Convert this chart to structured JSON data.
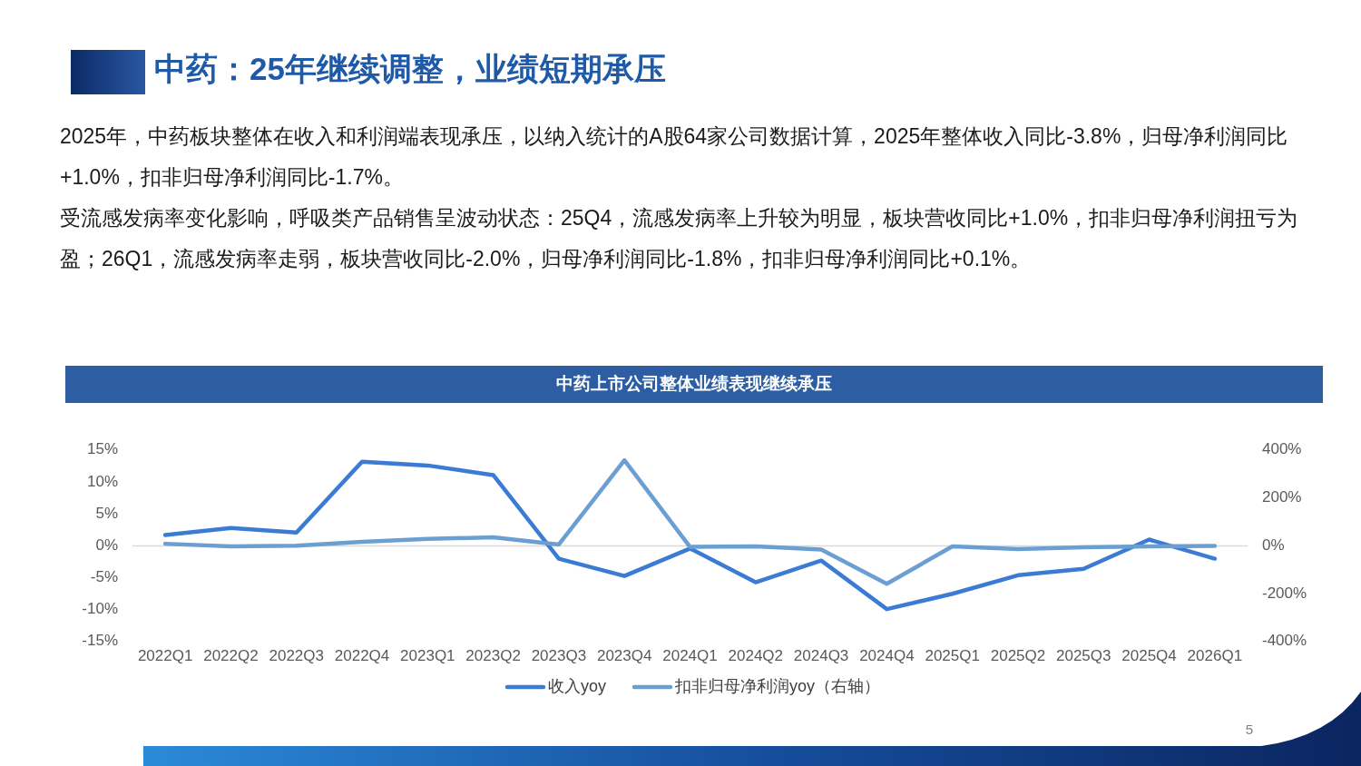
{
  "chart_data": {
    "type": "line",
    "title": "中药：25年继续调整，业绩短期承压",
    "subtitle": "中药上市公司整体业绩表现继续承压",
    "annotations": [
      "2025年，中药板块整体在收入和利润端表现承压，以纳入统计的A股64家公司数据计算，2025年整体收入同比-3.8%，归母净利润同比+1.0%，扣非归母净利润同比-1.7%。",
      "受流感发病率变化影响，呼吸类产品销售呈波动状态：25Q4，流感发病率上升较为明显，板块营收同比+1.0%，扣非归母净利润扭亏为盈；26Q1，流感发病率走弱，板块营收同比-2.0%，归母净利润同比-1.8%，扣非归母净利润同比+0.1%。",
      "5"
    ],
    "categories": [
      "2022Q1",
      "2022Q2",
      "2022Q3",
      "2022Q4",
      "2023Q1",
      "2023Q2",
      "2023Q3",
      "2023Q4",
      "2024Q1",
      "2024Q2",
      "2024Q3",
      "2024Q4",
      "2025Q1",
      "2025Q2",
      "2025Q3",
      "2025Q4",
      "2026Q1"
    ],
    "series": [
      {
        "name": "收入yoy",
        "color": "#3b7bd4",
        "values": [
          1.7,
          2.8,
          2.1,
          13.2,
          12.6,
          11.1,
          -2.0,
          -4.7,
          -0.4,
          -5.7,
          -2.3,
          -9.9,
          -7.5,
          -4.6,
          -3.6,
          1.0,
          -2.0
        ]
      },
      {
        "name": "扣非归母净利润yoy（右轴）",
        "color": "#6b9fd2",
        "axis": "y2",
        "values": [
          9,
          -2,
          1,
          17,
          29,
          36,
          6,
          358,
          -4,
          -2,
          -15,
          -158,
          -2,
          -13,
          -6,
          -2,
          0
        ]
      }
    ],
    "ylim": [
      -15,
      15
    ],
    "yticks": [
      {
        "value": -15,
        "label": "-15%"
      },
      {
        "value": -10,
        "label": "-10%"
      },
      {
        "value": -5,
        "label": "-5%"
      },
      {
        "value": 0,
        "label": "0%"
      },
      {
        "value": 5,
        "label": "5%"
      },
      {
        "value": 10,
        "label": "10%"
      },
      {
        "value": 15,
        "label": "15%"
      }
    ],
    "y2lim": [
      -400,
      400
    ],
    "y2ticks": [
      {
        "value": -400,
        "label": "-400%"
      },
      {
        "value": -200,
        "label": "-200%"
      },
      {
        "value": 0,
        "label": "0%"
      },
      {
        "value": 200,
        "label": "200%"
      },
      {
        "value": 400,
        "label": "400%"
      }
    ],
    "legend": "bottom"
  }
}
